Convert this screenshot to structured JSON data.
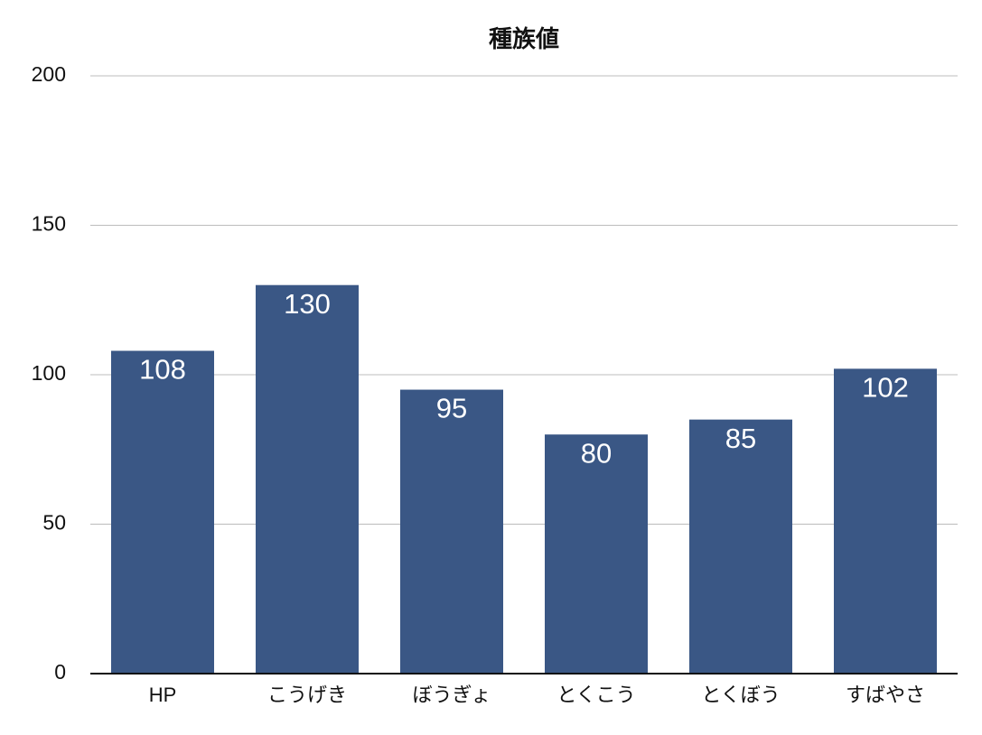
{
  "chart_data": {
    "type": "bar",
    "title": "種族値",
    "categories": [
      "HP",
      "こうげき",
      "ぼうぎょ",
      "とくこう",
      "とくぼう",
      "すばやさ"
    ],
    "values": [
      108,
      130,
      95,
      80,
      85,
      102
    ],
    "color": "#3a5785",
    "ylim": [
      0,
      200
    ],
    "yticks": [
      0,
      50,
      100,
      150,
      200
    ],
    "grid": true
  }
}
